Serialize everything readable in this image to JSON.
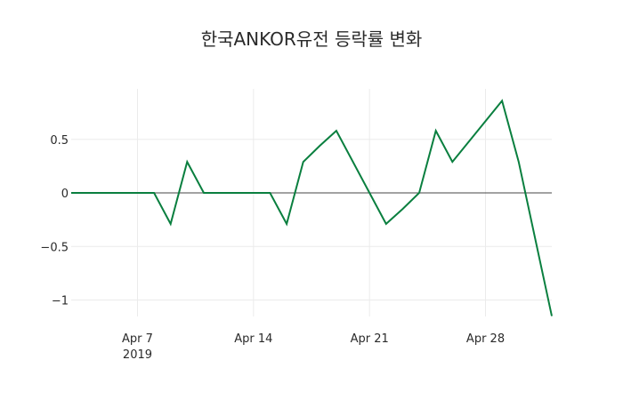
{
  "chart_data": {
    "type": "line",
    "title": "한국ANKOR유전 등락률 변화",
    "xlabel": "",
    "ylabel": "",
    "x": [
      "2019-04-03",
      "2019-04-04",
      "2019-04-05",
      "2019-04-08",
      "2019-04-09",
      "2019-04-10",
      "2019-04-11",
      "2019-04-12",
      "2019-04-15",
      "2019-04-16",
      "2019-04-17",
      "2019-04-18",
      "2019-04-19",
      "2019-04-22",
      "2019-04-23",
      "2019-04-24",
      "2019-04-25",
      "2019-04-26",
      "2019-04-29",
      "2019-04-30",
      "2019-05-02"
    ],
    "series": [
      {
        "name": "등락률",
        "color": "#0a7f3f",
        "values": [
          0,
          0,
          0,
          0,
          -0.29,
          0.29,
          0,
          0,
          0,
          -0.29,
          0.29,
          0.44,
          0.58,
          -0.29,
          -0.15,
          0,
          0.58,
          0.29,
          0.86,
          0.29,
          -1.15
        ]
      }
    ],
    "x_ticks": [
      {
        "date": "2019-04-07",
        "label": "Apr 7",
        "sublabel": "2019"
      },
      {
        "date": "2019-04-14",
        "label": "Apr 14",
        "sublabel": ""
      },
      {
        "date": "2019-04-21",
        "label": "Apr 21",
        "sublabel": ""
      },
      {
        "date": "2019-04-28",
        "label": "Apr 28",
        "sublabel": ""
      }
    ],
    "y_ticks": [
      {
        "value": 0.5,
        "label": "0.5"
      },
      {
        "value": 0,
        "label": "0"
      },
      {
        "value": -0.5,
        "label": "−0.5"
      },
      {
        "value": -1,
        "label": "−1"
      }
    ],
    "xlim": [
      "2019-04-03",
      "2019-05-02"
    ],
    "ylim": [
      -1.15,
      0.97
    ],
    "grid": true,
    "zero_line": true,
    "legend": false
  }
}
